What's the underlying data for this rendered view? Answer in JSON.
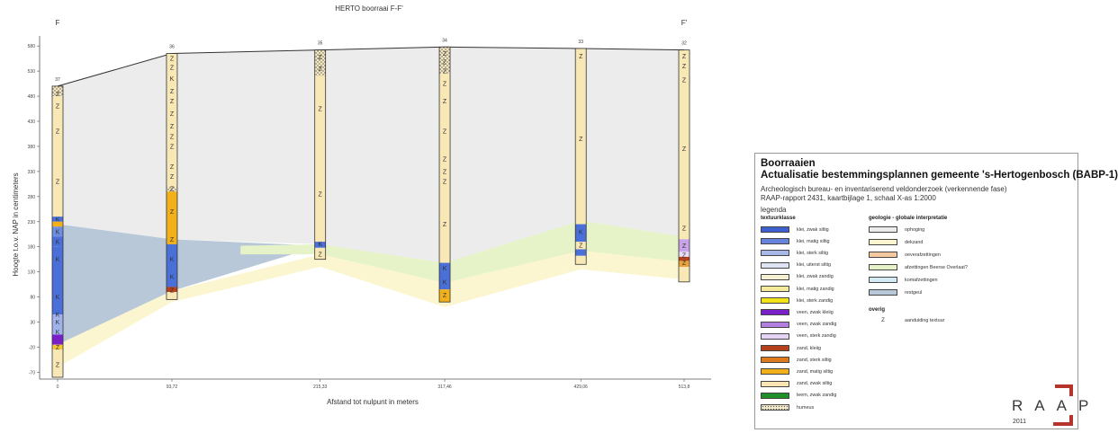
{
  "profile": {
    "title": "HERTO boorraai F-F'",
    "label_left": "F",
    "label_right": "F'",
    "y_axis_label": "Hoogte t.o.v. NAP in centimeters",
    "x_axis_label": "Afstand tot nulpunt in meters",
    "y_ticks": [
      "580",
      "530",
      "480",
      "430",
      "380",
      "330",
      "280",
      "230",
      "180",
      "130",
      "80",
      "30",
      "-20",
      "-70"
    ],
    "y_tick_values": [
      580,
      530,
      480,
      430,
      380,
      330,
      280,
      230,
      180,
      130,
      80,
      30,
      -20,
      -70
    ],
    "y_range": [
      -80,
      600
    ],
    "x_range": [
      0,
      513.8
    ],
    "x_ticks": [
      "0",
      "93,72",
      "215,33",
      "317,46",
      "429,06",
      "513,8"
    ],
    "boreholes": [
      {
        "id": "37",
        "x": 0,
        "top": 500,
        "bottom": -80,
        "layers": [
          {
            "from": 500,
            "to": 480,
            "color": "#f5e7bf",
            "pattern": "dots"
          },
          {
            "from": 480,
            "to": 240,
            "color": "#f8e8b6"
          },
          {
            "from": 240,
            "to": 230,
            "color": "#4a6fd8"
          },
          {
            "from": 230,
            "to": 220,
            "color": "#f2b11a"
          },
          {
            "from": 220,
            "to": 200,
            "color": "#6e8ee2"
          },
          {
            "from": 200,
            "to": 180,
            "color": "#4a6fd8"
          },
          {
            "from": 180,
            "to": 45,
            "color": "#4a6fd8"
          },
          {
            "from": 45,
            "to": 35,
            "color": "#9fb3ea"
          },
          {
            "from": 35,
            "to": 5,
            "color": "#9fb3ea"
          },
          {
            "from": 5,
            "to": -15,
            "color": "#7a1ec8"
          },
          {
            "from": -15,
            "to": -25,
            "color": "#f5c53a"
          },
          {
            "from": -25,
            "to": -80,
            "color": "#f8e8b6"
          }
        ],
        "marks": [
          {
            "d": 485,
            "t": "Z"
          },
          {
            "d": 460,
            "t": "Z"
          },
          {
            "d": 410,
            "t": "Z"
          },
          {
            "d": 310,
            "t": "Z"
          },
          {
            "d": 235,
            "t": "K"
          },
          {
            "d": 210,
            "t": "K"
          },
          {
            "d": 190,
            "t": "K"
          },
          {
            "d": 155,
            "t": "K"
          },
          {
            "d": 80,
            "t": "K"
          },
          {
            "d": 45,
            "t": "K"
          },
          {
            "d": 30,
            "t": "K"
          },
          {
            "d": 10,
            "t": "K"
          },
          {
            "d": -20,
            "t": "Z"
          },
          {
            "d": -55,
            "t": "Z"
          }
        ]
      },
      {
        "id": "36",
        "x": 93.72,
        "top": 565,
        "bottom": 75,
        "layers": [
          {
            "from": 565,
            "to": 300,
            "color": "#f8e8b6"
          },
          {
            "from": 300,
            "to": 290,
            "color": "#f5e7bf",
            "pattern": "dots"
          },
          {
            "from": 290,
            "to": 185,
            "color": "#f2b11a"
          },
          {
            "from": 185,
            "to": 100,
            "color": "#4a6fd8"
          },
          {
            "from": 100,
            "to": 90,
            "color": "#b5401c"
          },
          {
            "from": 90,
            "to": 75,
            "color": "#f8e8b6"
          }
        ],
        "marks": [
          {
            "d": 555,
            "t": "Z"
          },
          {
            "d": 537,
            "t": "Z"
          },
          {
            "d": 515,
            "t": "K"
          },
          {
            "d": 490,
            "t": "Z"
          },
          {
            "d": 470,
            "t": "Z"
          },
          {
            "d": 445,
            "t": "Z"
          },
          {
            "d": 420,
            "t": "Z"
          },
          {
            "d": 400,
            "t": "Z"
          },
          {
            "d": 380,
            "t": "Z"
          },
          {
            "d": 340,
            "t": "Z"
          },
          {
            "d": 320,
            "t": "Z"
          },
          {
            "d": 296,
            "t": "Z"
          },
          {
            "d": 250,
            "t": "Z"
          },
          {
            "d": 195,
            "t": "Z"
          },
          {
            "d": 155,
            "t": "K"
          },
          {
            "d": 120,
            "t": "K"
          },
          {
            "d": 94,
            "t": "Z"
          }
        ]
      },
      {
        "id": "35",
        "x": 215.33,
        "top": 572,
        "bottom": 155,
        "layers": [
          {
            "from": 572,
            "to": 520,
            "color": "#f5e7bf",
            "pattern": "dots"
          },
          {
            "from": 520,
            "to": 190,
            "color": "#f8e8b6"
          },
          {
            "from": 190,
            "to": 178,
            "color": "#4a6fd8"
          },
          {
            "from": 178,
            "to": 155,
            "color": "#f8e8b6"
          }
        ],
        "marks": [
          {
            "d": 558,
            "t": "Z"
          },
          {
            "d": 535,
            "t": "Z"
          },
          {
            "d": 455,
            "t": "Z"
          },
          {
            "d": 285,
            "t": "Z"
          },
          {
            "d": 186,
            "t": "K"
          },
          {
            "d": 165,
            "t": "Z"
          }
        ]
      },
      {
        "id": "34",
        "x": 317.46,
        "top": 578,
        "bottom": 70,
        "layers": [
          {
            "from": 578,
            "to": 525,
            "color": "#f5e7bf",
            "pattern": "dots"
          },
          {
            "from": 525,
            "to": 148,
            "color": "#f8e8b6"
          },
          {
            "from": 148,
            "to": 95,
            "color": "#4a6fd8"
          },
          {
            "from": 95,
            "to": 70,
            "color": "#f2b11a"
          }
        ],
        "marks": [
          {
            "d": 565,
            "t": "Z"
          },
          {
            "d": 548,
            "t": "Z"
          },
          {
            "d": 530,
            "t": "Z"
          },
          {
            "d": 505,
            "t": "Z"
          },
          {
            "d": 470,
            "t": "Z"
          },
          {
            "d": 410,
            "t": "Z"
          },
          {
            "d": 355,
            "t": "Z"
          },
          {
            "d": 330,
            "t": "Z"
          },
          {
            "d": 310,
            "t": "Z"
          },
          {
            "d": 225,
            "t": "Z"
          },
          {
            "d": 137,
            "t": "K"
          },
          {
            "d": 110,
            "t": "K"
          },
          {
            "d": 84,
            "t": "Z"
          }
        ]
      },
      {
        "id": "33",
        "x": 429.06,
        "top": 575,
        "bottom": 145,
        "layers": [
          {
            "from": 575,
            "to": 225,
            "color": "#f8e8b6"
          },
          {
            "from": 225,
            "to": 190,
            "color": "#4a6fd8"
          },
          {
            "from": 190,
            "to": 175,
            "color": "#f8e8b6"
          },
          {
            "from": 175,
            "to": 162,
            "color": "#4a6fd8"
          },
          {
            "from": 162,
            "to": 145,
            "color": "#f8e8b6"
          }
        ],
        "marks": [
          {
            "d": 560,
            "t": "Z"
          },
          {
            "d": 395,
            "t": "Z"
          },
          {
            "d": 210,
            "t": "K"
          },
          {
            "d": 183,
            "t": "Z"
          }
        ]
      },
      {
        "id": "32",
        "x": 513.8,
        "top": 572,
        "bottom": 110,
        "layers": [
          {
            "from": 572,
            "to": 195,
            "color": "#f8e8b6"
          },
          {
            "from": 195,
            "to": 170,
            "color": "#c9a3e8"
          },
          {
            "from": 170,
            "to": 160,
            "color": "#eadcf6"
          },
          {
            "from": 160,
            "to": 152,
            "color": "#b5401c"
          },
          {
            "from": 152,
            "to": 140,
            "color": "#e8a23a"
          },
          {
            "from": 140,
            "to": 110,
            "color": "#f8e8b6"
          }
        ],
        "marks": [
          {
            "d": 560,
            "t": "Z"
          },
          {
            "d": 540,
            "t": "Z"
          },
          {
            "d": 512,
            "t": "Z"
          },
          {
            "d": 375,
            "t": "Z"
          },
          {
            "d": 217,
            "t": "Z"
          },
          {
            "d": 182,
            "t": "Z"
          },
          {
            "d": 163,
            "t": "Z"
          },
          {
            "d": 148,
            "t": "Z"
          }
        ]
      }
    ],
    "zones": [
      {
        "name": "grey",
        "fill": "#ececec",
        "top": [
          [
            0,
            500
          ],
          [
            93.72,
            565
          ],
          [
            215.33,
            572
          ],
          [
            317.46,
            578
          ],
          [
            429.06,
            575
          ],
          [
            513.8,
            572
          ]
        ],
        "bottom": [
          [
            0,
            225
          ],
          [
            93.72,
            195
          ],
          [
            215.33,
            185
          ],
          [
            317.46,
            148
          ],
          [
            429.06,
            232
          ],
          [
            513.8,
            200
          ]
        ]
      },
      {
        "name": "blue",
        "fill": "#b8c8d8",
        "top": [
          [
            0,
            225
          ],
          [
            93.72,
            195
          ],
          [
            215.33,
            182
          ]
        ],
        "bottom": [
          [
            0,
            -15
          ],
          [
            93.72,
            92
          ],
          [
            215.33,
            182
          ]
        ]
      },
      {
        "name": "green",
        "fill": "#e6f3c8",
        "top": [
          [
            150,
            182
          ],
          [
            215.33,
            185
          ],
          [
            317.46,
            148
          ],
          [
            429.06,
            232
          ],
          [
            513.8,
            200
          ]
        ],
        "bottom": [
          [
            150,
            165
          ],
          [
            215.33,
            165
          ],
          [
            317.46,
            108
          ],
          [
            429.06,
            172
          ],
          [
            513.8,
            150
          ]
        ]
      },
      {
        "name": "yellow",
        "fill": "#fbf6d0",
        "top": [
          [
            0,
            -15
          ],
          [
            93.72,
            92
          ],
          [
            215.33,
            165
          ],
          [
            317.46,
            108
          ],
          [
            429.06,
            172
          ],
          [
            513.8,
            150
          ]
        ],
        "bottom": [
          [
            0,
            -60
          ],
          [
            93.72,
            70
          ],
          [
            215.33,
            140
          ],
          [
            317.46,
            60
          ],
          [
            429.06,
            135
          ],
          [
            513.8,
            115
          ]
        ]
      }
    ]
  },
  "legend": {
    "title": "Boorraaien",
    "subtitle": "Actualisatie bestemmingsplannen gemeente 's-Hertogenbosch (BABP-1)",
    "line1": "Archeologisch bureau- en inventariserend veldonderzoek (verkennende fase)",
    "line2": "RAAP-rapport 2431, kaartbijlage 1, schaal X-as 1:2000",
    "legenda": "legenda",
    "textuurklasse_title": "textuurklasse",
    "textuurklasse": [
      {
        "label": "klei, zwak siltig",
        "color": "#3e5fcf"
      },
      {
        "label": "klei, matig siltig",
        "color": "#6684dc"
      },
      {
        "label": "klei, sterk siltig",
        "color": "#a7b7e8"
      },
      {
        "label": "klei, uiterst siltig",
        "color": "#dfe4f4"
      },
      {
        "label": "klei, zwak zandig",
        "color": "#f6f0d2"
      },
      {
        "label": "klei, matig zandig",
        "color": "#f4ea9c"
      },
      {
        "label": "klei, sterk zandig",
        "color": "#f2e21a"
      },
      {
        "label": "veen, zwak kleiig",
        "color": "#7a1ec8"
      },
      {
        "label": "veen, zwak zandig",
        "color": "#b27ee0"
      },
      {
        "label": "veen, sterk zandig",
        "color": "#e5d4f4"
      },
      {
        "label": "zand, kleiig",
        "color": "#b5401c"
      },
      {
        "label": "zand, sterk siltig",
        "color": "#de7a1e"
      },
      {
        "label": "zand, matig siltig",
        "color": "#f2b11a"
      },
      {
        "label": "zand, zwak siltig",
        "color": "#f8e5b2"
      },
      {
        "label": "leem, zwak zandig",
        "color": "#1f8f2a"
      },
      {
        "label": "humeus",
        "color": "#f0e6c8"
      }
    ],
    "geologie_title": "geologie - globale interpretatie",
    "geologie": [
      {
        "label": "ophoging",
        "color": "#ececec"
      },
      {
        "label": "dekzand",
        "color": "#fbf6d0"
      },
      {
        "label": "oeverafzettingen",
        "color": "#f4c9a0"
      },
      {
        "label": "afzettingen Beerse Overlaat?",
        "color": "#e6f3c8"
      },
      {
        "label": "komafzettingen",
        "color": "#d4eaf4"
      },
      {
        "label": "restgeul",
        "color": "#b8c8d8"
      }
    ],
    "overig_title": "overig",
    "overig_mark": "Z",
    "overig_label": "aanduiding textuur"
  },
  "logo": {
    "text": "RAAP",
    "year": "2011"
  }
}
